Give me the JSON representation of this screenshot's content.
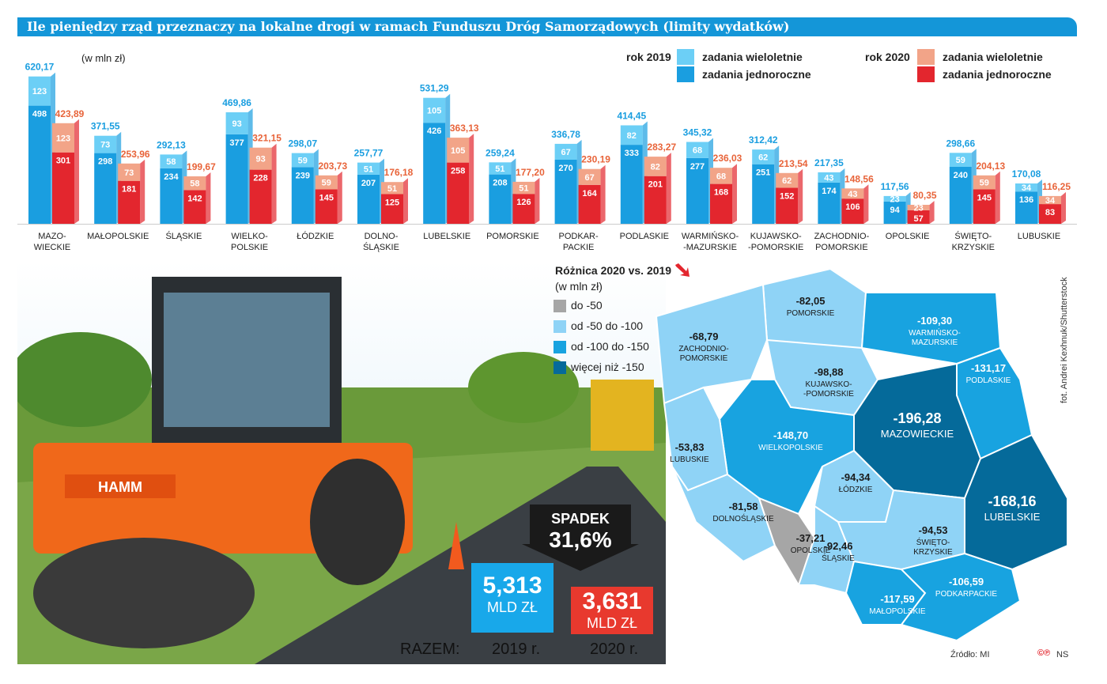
{
  "title": "Ile pieniędzy rząd przeznaczy na lokalne drogi w ramach Funduszu Dróg Samorządowych (limity wydatków)",
  "unit": "(w mln zł)",
  "legend": {
    "y2019": "rok 2019",
    "y2020": "rok 2020",
    "multi": "zadania wieloletnie",
    "single": "zadania jednoroczne",
    "multi2": "zadania wieloletnie",
    "single2": "zadania jednoroczne",
    "colors": {
      "c2019_top": "#6ccff6",
      "c2019_bottom": "#1a9ee0",
      "c2020_top": "#f2a488",
      "c2020_bottom": "#e3262e"
    }
  },
  "chart_data": {
    "type": "bar",
    "title": "Ile pieniędzy rząd przeznaczy na lokalne drogi w ramach Funduszu Dróg Samorządowych (limity wydatków)",
    "ylabel": "(w mln zł)",
    "categories": [
      "MAZO-\nWIECKIE",
      "MAŁOPOLSKIE",
      "ŚLĄSKIE",
      "WIELKO-\nPOLSKIE",
      "ŁÓDZKIE",
      "DOLNO-\nŚLĄSKIE",
      "LUBELSKIE",
      "POMORSKIE",
      "PODKAR-\nPACKIE",
      "PODLASKIE",
      "WARMIŃSKO-\n-MAZURSKIE",
      "KUJAWSKO-\n-POMORSKIE",
      "ZACHODNIO-\nPOMORSKIE",
      "OPOLSKIE",
      "ŚWIĘTO-\nKRZYSKIE",
      "LUBUSKIE"
    ],
    "series": [
      {
        "name": "2019 total",
        "labels": [
          "620,17",
          "371,55",
          "292,13",
          "469,86",
          "298,07",
          "257,77",
          "531,29",
          "259,24",
          "336,78",
          "414,45",
          "345,32",
          "312,42",
          "217,35",
          "117,56",
          "298,66",
          "170,08"
        ],
        "values": [
          620.17,
          371.55,
          292.13,
          469.86,
          298.07,
          257.77,
          531.29,
          259.24,
          336.78,
          414.45,
          345.32,
          312.42,
          217.35,
          117.56,
          298.66,
          170.08
        ]
      },
      {
        "name": "2019 zadania wieloletnie",
        "values": [
          123,
          73,
          58,
          93,
          59,
          51,
          105,
          51,
          67,
          82,
          68,
          62,
          43,
          23,
          59,
          34
        ]
      },
      {
        "name": "2019 zadania jednoroczne",
        "values": [
          498,
          298,
          234,
          377,
          239,
          207,
          426,
          208,
          270,
          333,
          277,
          251,
          174,
          94,
          240,
          136
        ]
      },
      {
        "name": "2020 total",
        "labels": [
          "423,89",
          "253,96",
          "199,67",
          "321,15",
          "203,73",
          "176,18",
          "363,13",
          "177,20",
          "230,19",
          "283,27",
          "236,03",
          "213,54",
          "148,56",
          "80,35",
          "204,13",
          "116,25"
        ],
        "values": [
          423.89,
          253.96,
          199.67,
          321.15,
          203.73,
          176.18,
          363.13,
          177.2,
          230.19,
          283.27,
          236.03,
          213.54,
          148.56,
          80.35,
          204.13,
          116.25
        ]
      },
      {
        "name": "2020 zadania wieloletnie",
        "values": [
          123,
          73,
          58,
          93,
          59,
          51,
          105,
          51,
          67,
          82,
          68,
          62,
          43,
          23,
          59,
          34
        ]
      },
      {
        "name": "2020 zadania jednoroczne",
        "values": [
          301,
          181,
          142,
          228,
          145,
          125,
          258,
          126,
          164,
          201,
          168,
          152,
          106,
          57,
          145,
          83
        ]
      }
    ]
  },
  "diff": {
    "title": "Różnica 2020 vs. 2019",
    "unit": "(w mln zł)",
    "legend": [
      {
        "label": "do -50",
        "color": "#a6a6a6"
      },
      {
        "label": "od -50 do -100",
        "color": "#8fd3f6"
      },
      {
        "label": "od -100 do -150",
        "color": "#18a3e0"
      },
      {
        "label": "więcej niż -150",
        "color": "#056a9a"
      }
    ],
    "regions": [
      {
        "value": "-82,05",
        "name": "POMORSKIE"
      },
      {
        "value": "-109,30",
        "name": "WARMIŃSKO-\nMAZURSKIE"
      },
      {
        "value": "-68,79",
        "name": "ZACHODNIO-\nPOMORSKIE"
      },
      {
        "value": "-98,88",
        "name": "KUJAWSKO-\n-POMORSKIE"
      },
      {
        "value": "-131,17",
        "name": "PODLASKIE"
      },
      {
        "value": "-196,28",
        "name": "MAZOWIECKIE"
      },
      {
        "value": "-148,70",
        "name": "WIELKOPOLSKIE"
      },
      {
        "value": "-53,83",
        "name": "LUBUSKIE"
      },
      {
        "value": "-94,34",
        "name": "ŁÓDZKIE"
      },
      {
        "value": "-168,16",
        "name": "LUBELSKIE"
      },
      {
        "value": "-81,58",
        "name": "DOLNOŚLĄSKIE"
      },
      {
        "value": "-37,21",
        "name": "OPOLSKIE"
      },
      {
        "value": "-92,46",
        "name": "ŚLĄSKIE"
      },
      {
        "value": "-94,53",
        "name": "ŚWIĘTO-\nKRZYSKIE"
      },
      {
        "value": "-117,59",
        "name": "MAŁOPOLSKIE"
      },
      {
        "value": "-106,59",
        "name": "PODKARPACKIE"
      }
    ]
  },
  "summary": {
    "drop_label": "SPADEK",
    "drop_value": "31,6%",
    "v2019": "5,313",
    "v2020": "3,631",
    "unit": "MLD ZŁ",
    "unit2": "MLD ZŁ",
    "razem": "RAZEM:",
    "y2019": "2019 r.",
    "y2020": "2020 r."
  },
  "footer": {
    "source": "Źródło: MI",
    "photo_credit": "fot. Andrei Kexhnuk/Shutterstock",
    "ns": "NS",
    "roller_brand": "HAMM"
  }
}
